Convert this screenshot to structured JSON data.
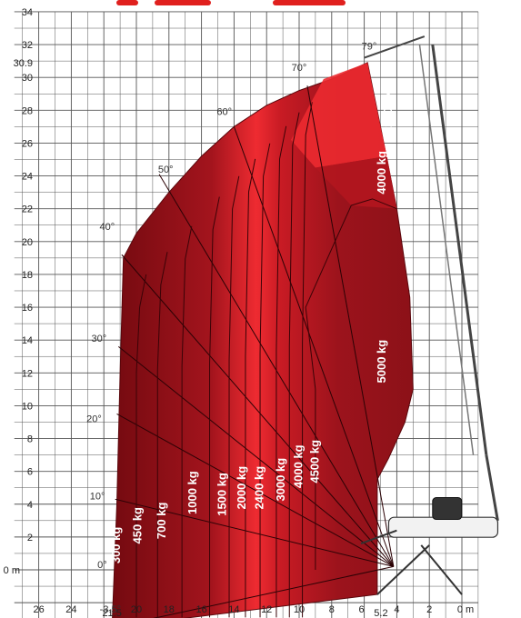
{
  "chart_data": {
    "type": "area",
    "xlabel_unit": "0 m",
    "ylabel_unit": "0 m",
    "xlim": [
      27.5,
      -1
    ],
    "ylim": [
      -4.8,
      34
    ],
    "x_ticks": [
      "26",
      "24",
      "21.5",
      "20",
      "18",
      "16",
      "14",
      "12",
      "10",
      "8",
      "6",
      "5.2",
      "4",
      "2"
    ],
    "y_ticks": [
      "34",
      "32",
      "30.9",
      "30",
      "28",
      "26",
      "24",
      "22",
      "20",
      "18",
      "16",
      "14",
      "12",
      "10",
      "8",
      "6",
      "4",
      "2"
    ],
    "angle_labels": [
      "79°",
      "70°",
      "60°",
      "50°",
      "40°",
      "30°",
      "20°",
      "10°",
      "0°",
      "-3.5°"
    ],
    "capacity_labels": [
      "300 kg",
      "450 kg",
      "700 kg",
      "1000 kg",
      "1500 kg",
      "2000 kg",
      "2400 kg",
      "3000 kg",
      "4000 kg",
      "4500 kg",
      "5000 kg",
      "4000 kg",
      "2400 kg"
    ],
    "envelope": [
      [
        21.5,
        -3.5
      ],
      [
        21.2,
        4
      ],
      [
        21,
        12
      ],
      [
        20.8,
        19
      ],
      [
        20,
        20.5
      ],
      [
        18,
        23
      ],
      [
        16,
        25.2
      ],
      [
        14,
        27
      ],
      [
        12,
        28.3
      ],
      [
        10,
        29.2
      ],
      [
        8,
        29.9
      ],
      [
        5.8,
        30.9
      ],
      [
        5,
        27
      ],
      [
        4,
        22
      ],
      [
        3.2,
        16.6
      ],
      [
        3,
        11
      ],
      [
        3.5,
        9
      ],
      [
        4.5,
        6.8
      ],
      [
        5.2,
        5.5
      ],
      [
        5.2,
        -1.5
      ]
    ],
    "colors": {
      "background": "#ffffff",
      "grid": "#555555",
      "dark": "#7a0c12",
      "mid": "#b01822",
      "bright": "#ec2a30",
      "title": "#e0201e"
    }
  }
}
